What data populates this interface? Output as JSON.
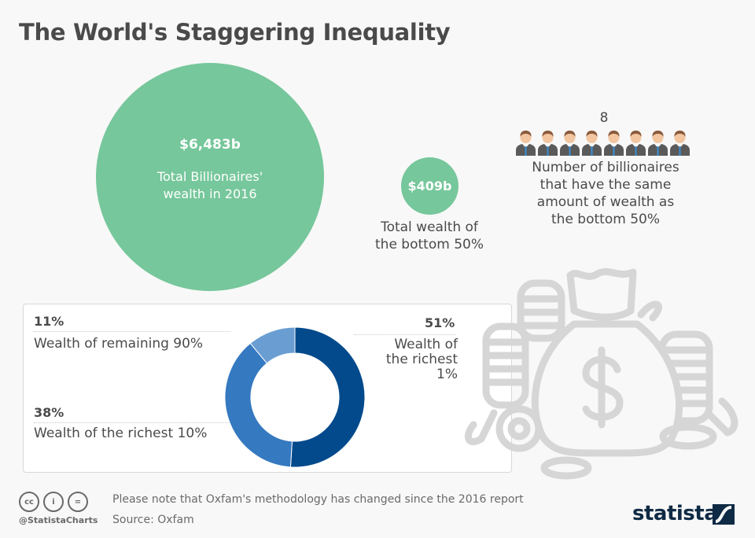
{
  "title": "The World's Staggering Inequality",
  "billionaires_bubble": {
    "value": "$6,483b",
    "label_line1": "Total Billionaires'",
    "label_line2": "wealth in 2016"
  },
  "bottom50_bubble": {
    "value": "$409b",
    "label_line1": "Total wealth of",
    "label_line2": "the bottom 50%"
  },
  "billionaire_count": {
    "value": "8",
    "icon": "businessman-icon",
    "label_lines": [
      "Number of billionaires",
      "that have the same",
      "amount of wealth as",
      "the bottom 50%"
    ]
  },
  "donut": {
    "segments": [
      {
        "pct": "51%",
        "label": "Wealth of the richest 1%",
        "lines": [
          "Wealth of",
          "the richest",
          "1%"
        ],
        "color": "#024a8c"
      },
      {
        "pct": "38%",
        "label": "Wealth of the richest 10%",
        "color": "#3579c0"
      },
      {
        "pct": "11%",
        "label": "Wealth of remaining 90%",
        "color": "#6a9ed2"
      }
    ]
  },
  "decoration": {
    "icon": "money-bag-icon",
    "color": "#d6d6d6"
  },
  "footer": {
    "note": "Please note that Oxfam's methodology has changed since the 2016 report",
    "source": "Source: Oxfam",
    "handle": "@StatistaCharts",
    "license_icons": [
      "cc-icon",
      "attribution-icon",
      "no-derivatives-icon"
    ],
    "brand": "statista"
  },
  "colors": {
    "green": "#76c79b",
    "navy": "#0f2a44",
    "text": "#4a4a4a",
    "background": "#f8f8f8"
  },
  "chart_data": [
    {
      "type": "bubble",
      "title": "The World's Staggering Inequality",
      "categories": [
        "Total Billionaires' wealth in 2016",
        "Total wealth of the bottom 50%"
      ],
      "values": [
        6483,
        409
      ],
      "unit": "billion USD"
    },
    {
      "type": "pie",
      "subtype": "donut",
      "categories": [
        "Wealth of the richest 1%",
        "Wealth of the richest 10%",
        "Wealth of remaining 90%"
      ],
      "values": [
        51,
        38,
        11
      ],
      "unit": "%"
    },
    {
      "type": "pictogram",
      "label": "Number of billionaires that have the same amount of wealth as the bottom 50%",
      "value": 8
    }
  ]
}
